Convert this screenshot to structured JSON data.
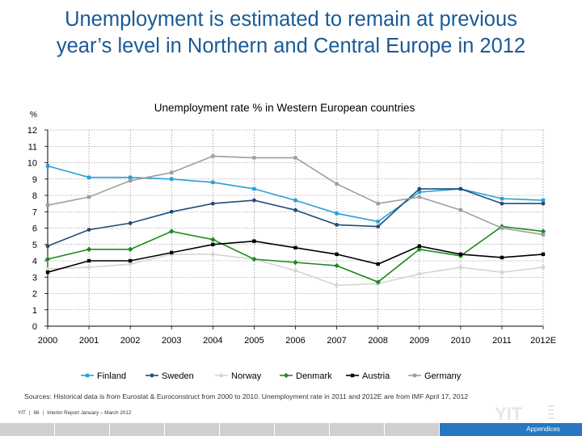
{
  "slide": {
    "title_line1": "Unemployment is estimated to remain at previous",
    "title_line2": "year’s level in Northern and Central Europe in 2012",
    "sources": "Sources: Historical data is from Eurostat & Euroconstruct from 2000 to 2010. Unemployment rate in 2011 and 2012E are from IMF April 17, 2012",
    "footer": {
      "company": "YIT",
      "page": "66",
      "report": "Interim Report January – March 2012"
    },
    "logo_text": "YIT",
    "nav_label": "Appendices",
    "colors": {
      "title": "#1a5a96",
      "accent": "#2777c2"
    }
  },
  "chart_data": {
    "type": "line",
    "title": "Unemployment rate % in Western European countries",
    "ylabel": "%",
    "xlabel": "",
    "ylim": [
      0,
      12
    ],
    "yticks": [
      "0",
      "1",
      "2",
      "3",
      "4",
      "5",
      "6",
      "7",
      "8",
      "9",
      "10",
      "11",
      "12"
    ],
    "categories": [
      "2000",
      "2001",
      "2002",
      "2003",
      "2004",
      "2005",
      "2006",
      "2007",
      "2008",
      "2009",
      "2010",
      "2011",
      "2012E"
    ],
    "grid": true,
    "legend_position": "bottom",
    "series": [
      {
        "name": "Finland",
        "color": "#2a9fd6",
        "marker": "square",
        "values": [
          9.8,
          9.1,
          9.1,
          9.0,
          8.8,
          8.4,
          7.7,
          6.9,
          6.4,
          8.2,
          8.4,
          7.8,
          7.7
        ]
      },
      {
        "name": "Sweden",
        "color": "#1f4e79",
        "marker": "circle",
        "values": [
          4.9,
          5.9,
          6.3,
          7.0,
          7.5,
          7.7,
          7.1,
          6.2,
          6.1,
          8.4,
          8.4,
          7.5,
          7.5
        ]
      },
      {
        "name": "Norway",
        "color": "#d6d6d0",
        "marker": "circle",
        "values": [
          3.5,
          3.6,
          3.8,
          4.4,
          4.4,
          4.1,
          3.4,
          2.5,
          2.6,
          3.2,
          3.6,
          3.3,
          3.6
        ]
      },
      {
        "name": "Denmark",
        "color": "#1e8a1e",
        "marker": "diamond",
        "values": [
          4.1,
          4.7,
          4.7,
          5.8,
          5.3,
          4.1,
          3.9,
          3.7,
          2.7,
          4.7,
          4.3,
          6.1,
          5.8
        ]
      },
      {
        "name": "Austria",
        "color": "#000000",
        "marker": "square",
        "values": [
          3.3,
          4.0,
          4.0,
          4.5,
          5.0,
          5.2,
          4.8,
          4.4,
          3.8,
          4.9,
          4.4,
          4.2,
          4.4
        ]
      },
      {
        "name": "Germany",
        "color": "#9e9e9e",
        "marker": "square",
        "values": [
          7.4,
          7.9,
          8.9,
          9.4,
          10.4,
          10.3,
          10.3,
          8.7,
          7.5,
          7.9,
          7.1,
          6.0,
          5.6
        ]
      }
    ]
  }
}
